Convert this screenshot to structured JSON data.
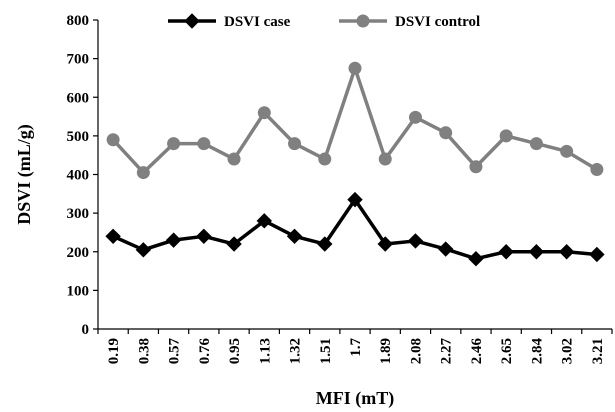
{
  "chart_data": {
    "type": "line",
    "xlabel": "MFI (mT)",
    "ylabel": "DSVI (mL/g)",
    "ylim": [
      0,
      800
    ],
    "yticks": [
      "0",
      "100",
      "200",
      "300",
      "400",
      "500",
      "600",
      "700",
      "800"
    ],
    "categories": [
      "0.19",
      "0.38",
      "0.57",
      "0.76",
      "0.95",
      "1.13",
      "1.32",
      "1.51",
      "1.7",
      "1.89",
      "2.08",
      "2.27",
      "2.46",
      "2.65",
      "2.84",
      "3.02",
      "3.21"
    ],
    "grid": false,
    "legend_position": "top",
    "series": [
      {
        "name": "DSVI case",
        "color": "#000000",
        "marker": "diamond",
        "values": [
          240,
          205,
          230,
          240,
          220,
          280,
          240,
          220,
          335,
          220,
          228,
          207,
          182,
          200,
          200,
          200,
          193
        ]
      },
      {
        "name": "DSVI control",
        "color": "#808080",
        "marker": "circle",
        "values": [
          490,
          405,
          480,
          480,
          440,
          560,
          480,
          440,
          675,
          440,
          548,
          508,
          420,
          500,
          480,
          460,
          413
        ]
      }
    ]
  }
}
